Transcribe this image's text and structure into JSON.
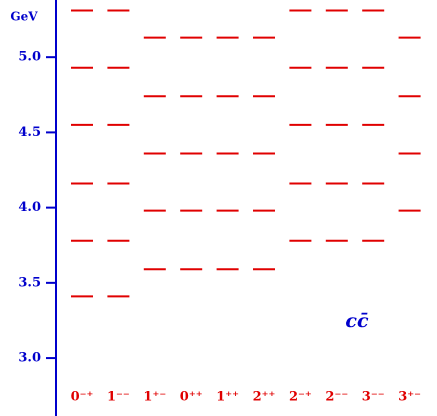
{
  "chart_data": {
    "type": "level",
    "y_label": "GeV",
    "annotation": "cc̄",
    "categories": [
      "0⁻⁺",
      "1⁻⁻",
      "1⁺⁻",
      "0⁺⁺",
      "1⁺⁺",
      "2⁺⁺",
      "2⁻⁺",
      "2⁻⁻",
      "3⁻⁻",
      "3⁺⁻"
    ],
    "levels": [
      [
        5.31,
        4.93,
        4.55,
        4.16,
        3.78,
        3.41
      ],
      [
        5.31,
        4.93,
        4.55,
        4.16,
        3.78,
        3.41
      ],
      [
        5.13,
        4.74,
        4.36,
        3.98,
        3.59
      ],
      [
        5.13,
        4.74,
        4.36,
        3.98,
        3.59
      ],
      [
        5.13,
        4.74,
        4.36,
        3.98,
        3.59
      ],
      [
        5.13,
        4.74,
        4.36,
        3.98,
        3.59
      ],
      [
        5.31,
        4.93,
        4.55,
        4.16,
        3.78
      ],
      [
        5.31,
        4.93,
        4.55,
        4.16,
        3.78
      ],
      [
        5.31,
        4.93,
        4.55,
        4.16,
        3.78
      ],
      [
        5.13,
        4.74,
        4.36,
        3.98
      ]
    ],
    "color": "#e00000",
    "axis_color": "#0000cc",
    "ylim": [
      2.615,
      5.38
    ],
    "yticks": [
      {
        "value": 3,
        "label": "3.0"
      },
      3.5,
      {
        "value": 4,
        "label": "4.0"
      },
      4.5,
      {
        "value": 5,
        "label": "5.0"
      }
    ]
  }
}
